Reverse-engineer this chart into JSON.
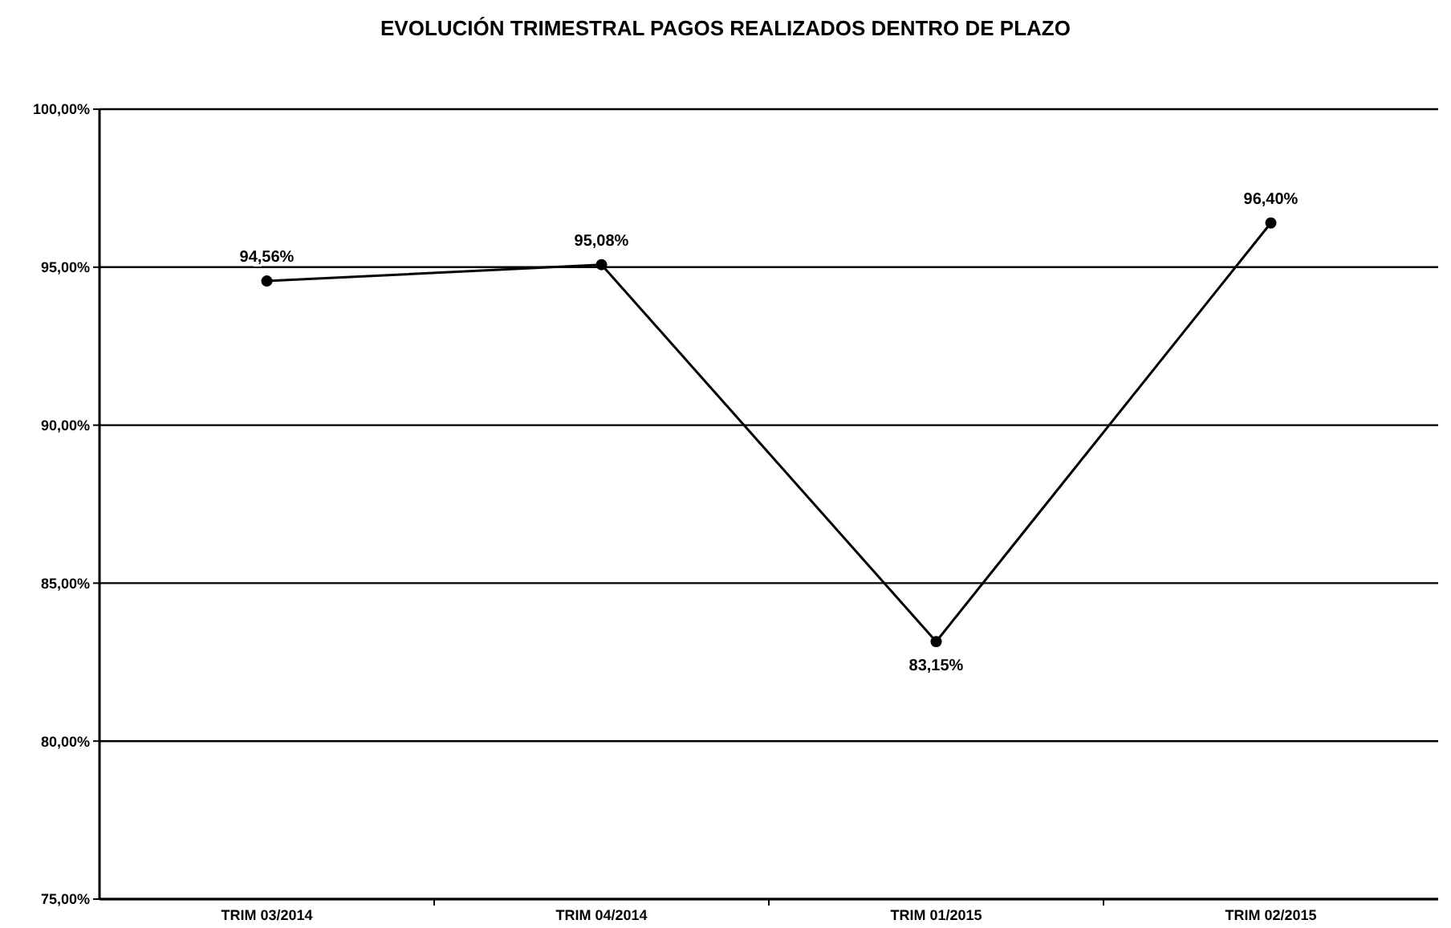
{
  "chart_data": {
    "type": "line",
    "title": "EVOLUCIÓN TRIMESTRAL PAGOS REALIZADOS DENTRO DE PLAZO",
    "categories": [
      "TRIM 03/2014",
      "TRIM 04/2014",
      "TRIM 01/2015",
      "TRIM 02/2015"
    ],
    "series": [
      {
        "color": "#000000",
        "values": [
          94.56,
          95.08,
          83.15,
          96.4
        ],
        "value_labels": [
          "94,56%",
          "95,08%",
          "83,15%",
          "96,40%"
        ]
      }
    ],
    "ylim": [
      75,
      100
    ],
    "yticks": [
      {
        "value": 75,
        "label": "75,00%"
      },
      {
        "value": 80,
        "label": "80,00%"
      },
      {
        "value": 85,
        "label": "85,00%"
      },
      {
        "value": 90,
        "label": "90,00%"
      },
      {
        "value": 95,
        "label": "95,00%"
      },
      {
        "value": 100,
        "label": "100,00%"
      }
    ],
    "grid": "y",
    "marker": "circle",
    "line_style": "solid"
  }
}
